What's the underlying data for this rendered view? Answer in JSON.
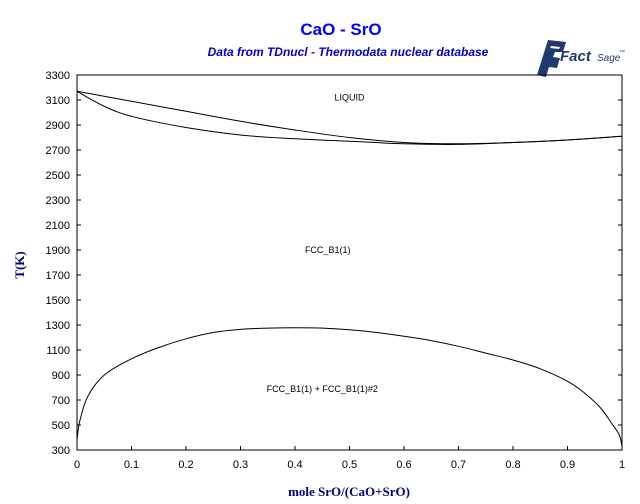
{
  "logo": {
    "text_main": "Fact",
    "text_sage": "Sage",
    "tm": "™"
  },
  "chart_data": {
    "type": "line",
    "title": "CaO - SrO",
    "subtitle": "Data from TDnucl - Thermodata nuclear database",
    "xlabel": "mole SrO/(CaO+SrO)",
    "ylabel": "T(K)",
    "xlim": [
      0,
      1
    ],
    "ylim": [
      300,
      3300
    ],
    "x_ticks": [
      "0",
      "0.1",
      "0.2",
      "0.3",
      "0.4",
      "0.5",
      "0.6",
      "0.7",
      "0.8",
      "0.9",
      "1"
    ],
    "y_ticks": [
      "300",
      "500",
      "700",
      "900",
      "1100",
      "1300",
      "1500",
      "1700",
      "1900",
      "2100",
      "2300",
      "2500",
      "2700",
      "2900",
      "3100",
      "3300"
    ],
    "grid": false,
    "legend": "none",
    "region_labels": [
      {
        "text": "LIQUID",
        "x": 0.5,
        "y": 3120
      },
      {
        "text": "FCC_B1(1)",
        "x": 0.46,
        "y": 1900
      },
      {
        "text": "FCC_B1(1) + FCC_B1(1)#2",
        "x": 0.45,
        "y": 790
      }
    ],
    "series": [
      {
        "x": [
          0,
          0.1,
          0.2,
          0.3,
          0.4,
          0.5,
          0.6,
          0.7,
          0.8,
          0.9,
          1
        ],
        "y": [
          3170,
          3090,
          3010,
          2930,
          2860,
          2800,
          2760,
          2750,
          2760,
          2780,
          2810
        ]
      },
      {
        "x": [
          0,
          0.05,
          0.1,
          0.2,
          0.3,
          0.4,
          0.5,
          0.6,
          0.7,
          0.8,
          0.9,
          1
        ],
        "y": [
          3170,
          3050,
          2970,
          2880,
          2820,
          2790,
          2770,
          2750,
          2745,
          2760,
          2780,
          2810
        ]
      },
      {
        "x": [
          0,
          0.005,
          0.02,
          0.05,
          0.1,
          0.15,
          0.2,
          0.25,
          0.3,
          0.35,
          0.4,
          0.45,
          0.5,
          0.55,
          0.6,
          0.65,
          0.7,
          0.75,
          0.8,
          0.85,
          0.9,
          0.93,
          0.96,
          0.98,
          0.995,
          1
        ],
        "y": [
          380,
          530,
          730,
          900,
          1030,
          1120,
          1190,
          1240,
          1265,
          1275,
          1278,
          1275,
          1262,
          1240,
          1210,
          1175,
          1130,
          1075,
          1020,
          950,
          850,
          760,
          640,
          520,
          420,
          330
        ]
      }
    ]
  }
}
